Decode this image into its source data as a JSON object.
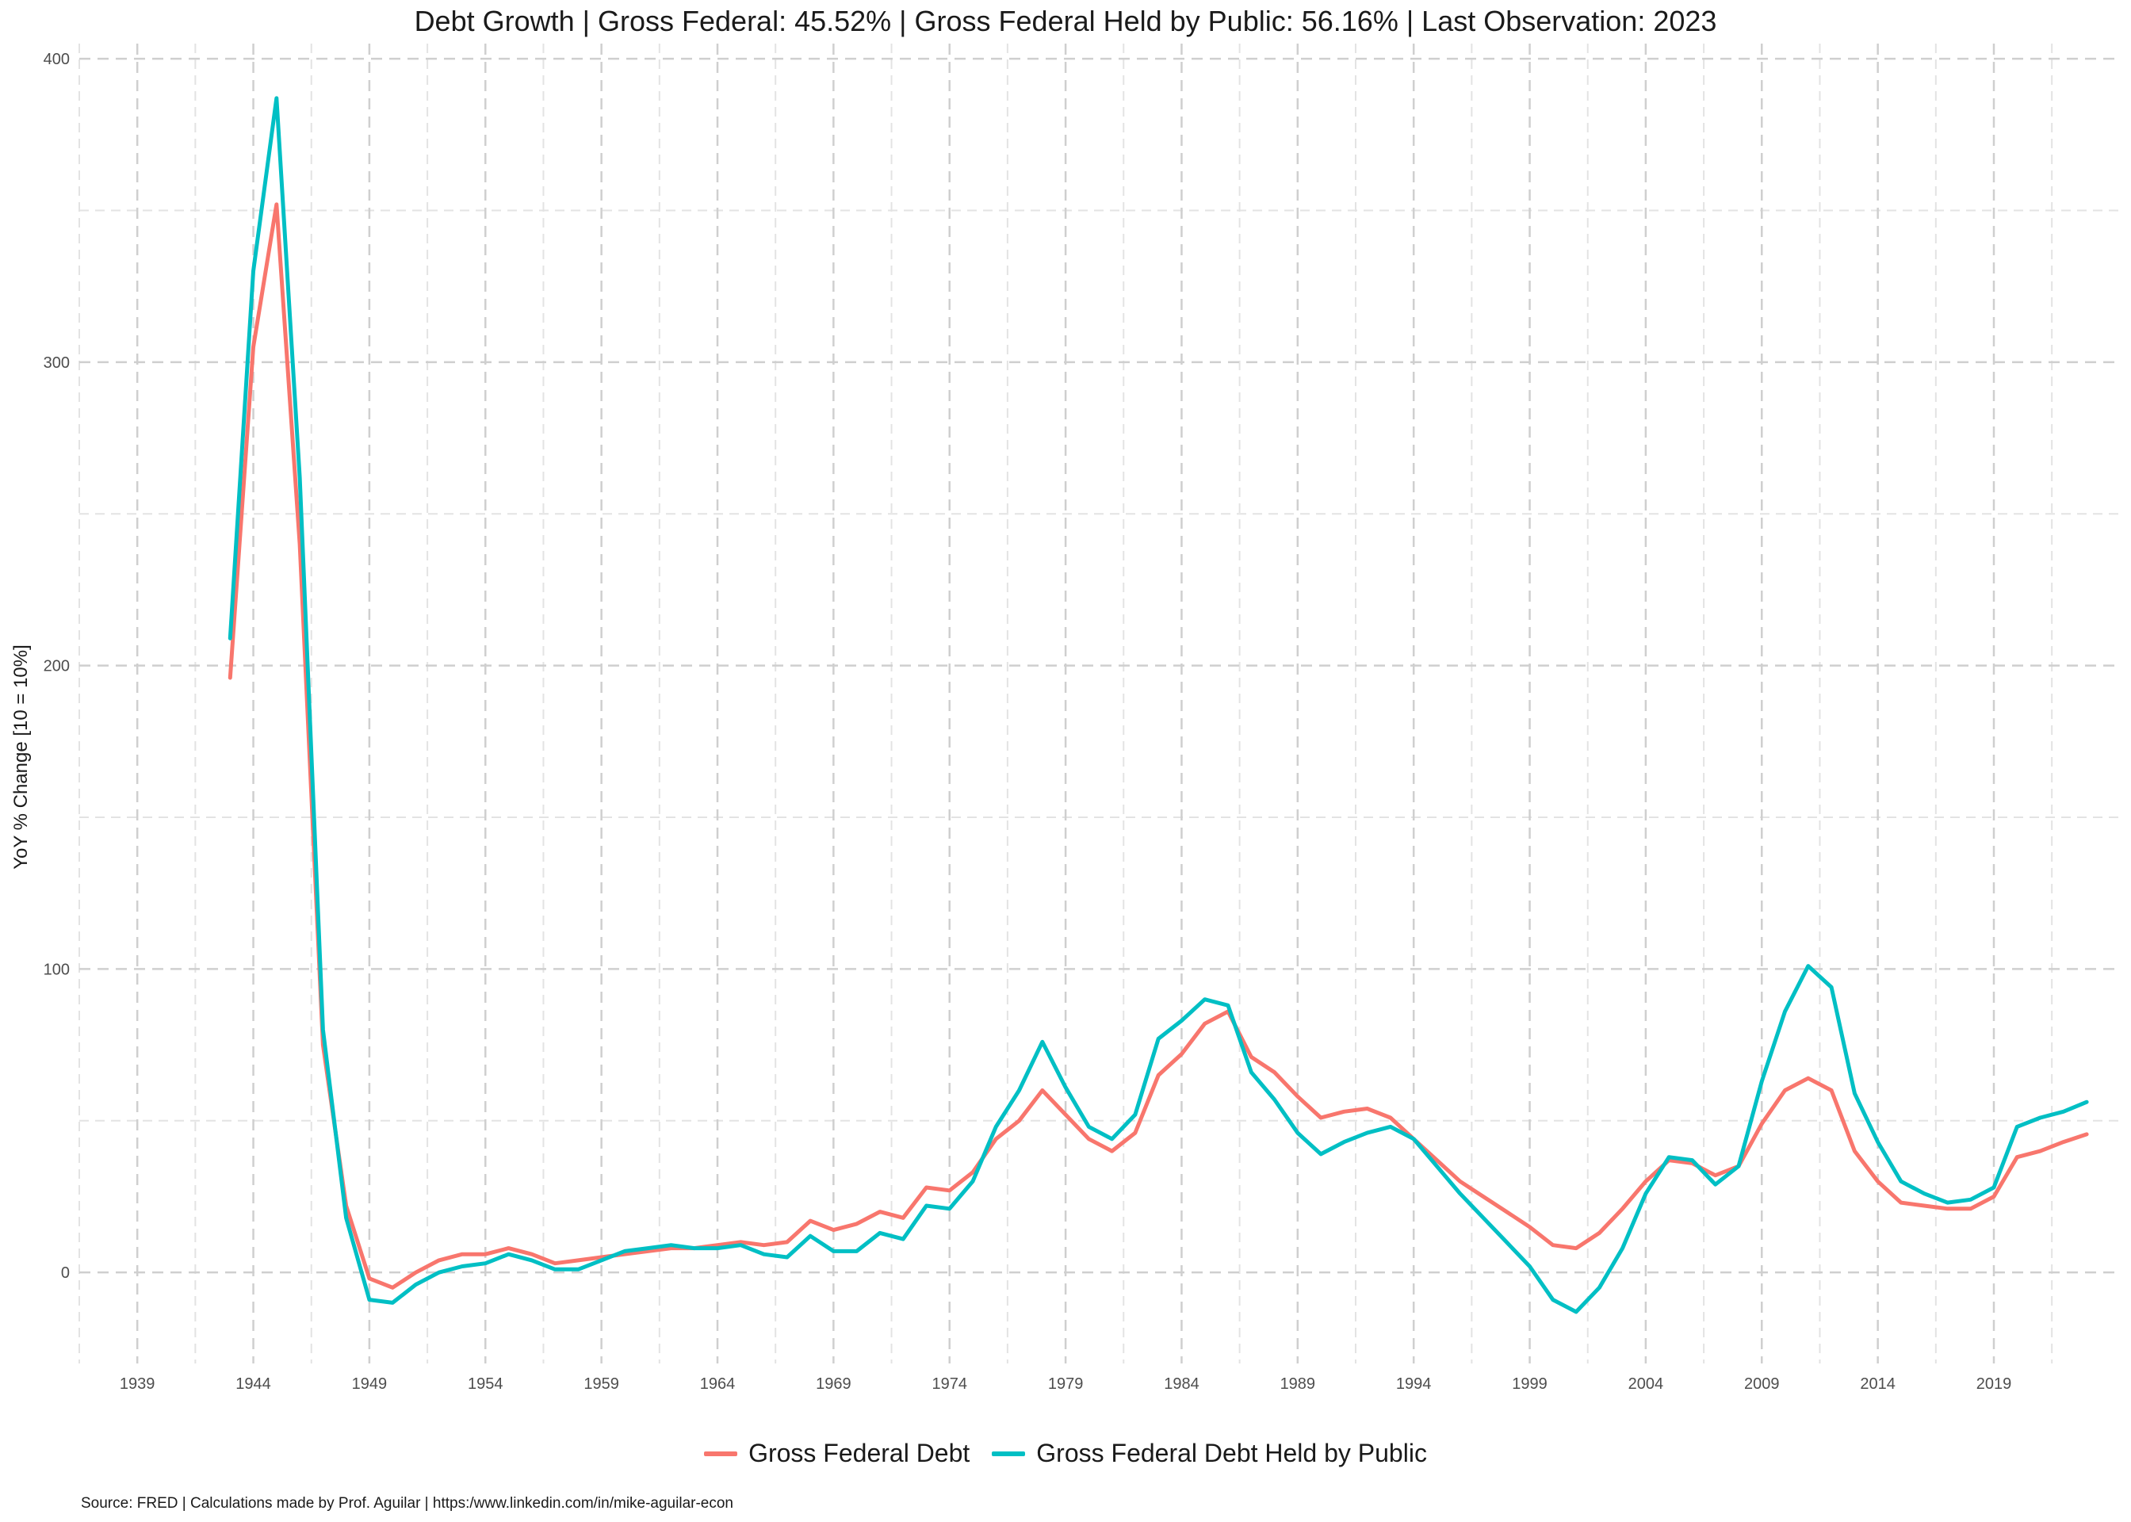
{
  "chart_data": {
    "type": "line",
    "title": "Debt Growth | Gross Federal: 45.52% | Gross Federal Held by Public: 56.16% | Last Observation: 2023",
    "xlabel": "",
    "ylabel": "YoY % Change [10 = 10%]",
    "caption": "Source: FRED | Calculations made by Prof. Aguilar | https:/www.linkedin.com/in/mike-aguilar-econ",
    "xlim": [
      1936.5,
      2024.5
    ],
    "ylim": [
      -30,
      405
    ],
    "x_ticks": [
      1939,
      1944,
      1949,
      1954,
      1959,
      1964,
      1969,
      1974,
      1979,
      1984,
      1989,
      1994,
      1999,
      2004,
      2009,
      2014,
      2019
    ],
    "y_ticks": [
      0,
      100,
      200,
      300,
      400
    ],
    "grid": true,
    "legend_position": "bottom",
    "series": [
      {
        "name": "Gross Federal Debt",
        "color": "#F8766D",
        "x": [
          1943,
          1944,
          1945,
          1946,
          1947,
          1948,
          1949,
          1950,
          1951,
          1952,
          1953,
          1954,
          1955,
          1956,
          1957,
          1958,
          1959,
          1960,
          1961,
          1962,
          1963,
          1964,
          1965,
          1966,
          1967,
          1968,
          1969,
          1970,
          1971,
          1972,
          1973,
          1974,
          1975,
          1976,
          1977,
          1978,
          1979,
          1980,
          1981,
          1982,
          1983,
          1984,
          1985,
          1986,
          1987,
          1988,
          1989,
          1990,
          1991,
          1992,
          1993,
          1994,
          1995,
          1996,
          1997,
          1998,
          1999,
          2000,
          2001,
          2002,
          2003,
          2004,
          2005,
          2006,
          2007,
          2008,
          2009,
          2010,
          2011,
          2012,
          2013,
          2014,
          2015,
          2016,
          2017,
          2018,
          2019,
          2020,
          2021,
          2022,
          2023
        ],
        "y": [
          196,
          305,
          352,
          240,
          75,
          22,
          -2,
          -5,
          0,
          4,
          6,
          6,
          8,
          6,
          3,
          4,
          5,
          6,
          7,
          8,
          8,
          9,
          10,
          9,
          10,
          17,
          14,
          16,
          20,
          18,
          28,
          27,
          33,
          44,
          50,
          60,
          52,
          44,
          40,
          46,
          65,
          72,
          82,
          86,
          71,
          66,
          58,
          51,
          53,
          54,
          51,
          44,
          37,
          30,
          25,
          20,
          15,
          9,
          8,
          13,
          21,
          30,
          37,
          36,
          32,
          35,
          49,
          60,
          64,
          60,
          40,
          30,
          23,
          22,
          21,
          21,
          25,
          38,
          40,
          43,
          45.52
        ]
      },
      {
        "name": "Gross Federal Debt Held by Public",
        "color": "#00BFC4",
        "x": [
          1943,
          1944,
          1945,
          1946,
          1947,
          1948,
          1949,
          1950,
          1951,
          1952,
          1953,
          1954,
          1955,
          1956,
          1957,
          1958,
          1959,
          1960,
          1961,
          1962,
          1963,
          1964,
          1965,
          1966,
          1967,
          1968,
          1969,
          1970,
          1971,
          1972,
          1973,
          1974,
          1975,
          1976,
          1977,
          1978,
          1979,
          1980,
          1981,
          1982,
          1983,
          1984,
          1985,
          1986,
          1987,
          1988,
          1989,
          1990,
          1991,
          1992,
          1993,
          1994,
          1995,
          1996,
          1997,
          1998,
          1999,
          2000,
          2001,
          2002,
          2003,
          2004,
          2005,
          2006,
          2007,
          2008,
          2009,
          2010,
          2011,
          2012,
          2013,
          2014,
          2015,
          2016,
          2017,
          2018,
          2019,
          2020,
          2021,
          2022,
          2023
        ],
        "y": [
          209,
          330,
          387,
          262,
          80,
          18,
          -9,
          -10,
          -4,
          0,
          2,
          3,
          6,
          4,
          1,
          1,
          4,
          7,
          8,
          9,
          8,
          8,
          9,
          6,
          5,
          12,
          7,
          7,
          13,
          11,
          22,
          21,
          30,
          48,
          60,
          76,
          61,
          48,
          44,
          52,
          77,
          83,
          90,
          88,
          66,
          57,
          46,
          39,
          43,
          46,
          48,
          44,
          35,
          26,
          18,
          10,
          2,
          -9,
          -13,
          -5,
          8,
          26,
          38,
          37,
          29,
          35,
          63,
          86,
          101,
          94,
          59,
          43,
          30,
          26,
          23,
          24,
          28,
          48,
          51,
          53,
          56.16
        ]
      }
    ]
  }
}
